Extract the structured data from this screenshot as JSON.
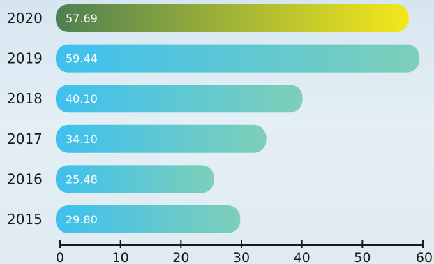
{
  "chart_data": {
    "type": "bar",
    "orientation": "horizontal",
    "categories": [
      "2020",
      "2019",
      "2018",
      "2017",
      "2016",
      "2015"
    ],
    "values": [
      57.69,
      59.44,
      40.1,
      34.1,
      25.48,
      29.8
    ],
    "value_labels": [
      "57.69",
      "59.44",
      "40.10",
      "34.10",
      "25.48",
      "29.80"
    ],
    "xlim": [
      0,
      60
    ],
    "xticks": [
      0,
      10,
      20,
      30,
      40,
      50,
      60
    ],
    "xtick_labels": [
      "0",
      "10",
      "20",
      "30",
      "40",
      "50",
      "60"
    ],
    "grid": false,
    "colors": {
      "highlight_start": "#4e7f52",
      "highlight_end": "#f4e81a",
      "bar_start": "#3ec0ef",
      "bar_end": "#7dcfb8",
      "axis": "#1a1a1a"
    }
  }
}
